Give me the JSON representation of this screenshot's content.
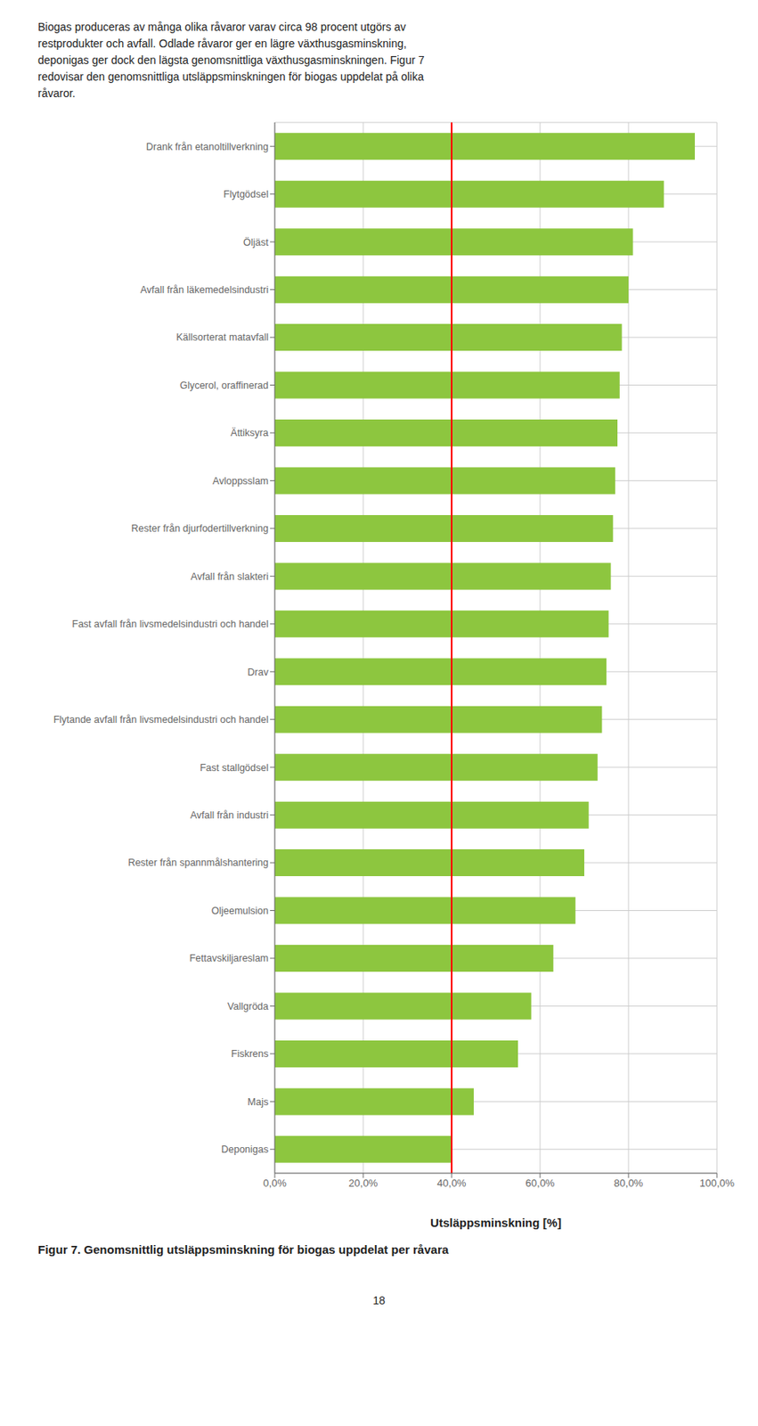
{
  "chart_data": {
    "type": "bar",
    "orientation": "horizontal",
    "title": "Figur 7. Genomsnittlig utsläppsminskning för biogas uppdelat per råvara",
    "xlabel": "Utsläppsminskning [%]",
    "categories": [
      "Deponigas",
      "Majs",
      "Fiskrens",
      "Vallgröda",
      "Fettavskiljareslam",
      "Oljeemulsion",
      "Rester från spannmålshantering",
      "Avfall från industri",
      "Fast stallgödsel",
      "Flytande avfall från livsmedelsindustri och handel",
      "Drav",
      "Fast avfall från livsmedelsindustri och handel",
      "Avfall från slakteri",
      "Rester från djurfodertillverkning",
      "Avloppsslam",
      "Ättiksyra",
      "Glycerol, oraffinerad",
      "Källsorterat matavfall",
      "Avfall från läkemedelsindustri",
      "Öljäst",
      "Flytgödsel",
      "Drank från etanoltillverkning"
    ],
    "values": [
      40.0,
      45.0,
      55.0,
      58.0,
      63.0,
      68.0,
      70.0,
      71.0,
      73.0,
      74.0,
      75.0,
      75.5,
      76.0,
      76.5,
      77.0,
      77.5,
      78.0,
      78.5,
      80.0,
      81.0,
      88.0,
      95.0
    ],
    "color": "#8DC63F",
    "reference_line": {
      "value": 40.0,
      "color": "#FF0000"
    },
    "xlim": [
      0,
      100
    ],
    "xticks": [
      {
        "value": 0,
        "label": "0,0%"
      },
      {
        "value": 20,
        "label": "20,0%"
      },
      {
        "value": 40,
        "label": "40,0%"
      },
      {
        "value": 60,
        "label": "60,0%"
      },
      {
        "value": 80,
        "label": "80,0%"
      },
      {
        "value": 100,
        "label": "100,0%"
      }
    ],
    "grid": true,
    "annotations": [
      "Biogas produceras av många olika råvaror varav circa 98 procent utgörs av",
      "restprodukter och avfall. Odlade råvaror ger en lägre växthusgasminskning,",
      "deponigas ger dock den lägsta genomsnittliga växthusgasminskningen. Figur 7",
      "redovisar den genomsnittliga utsläppsminskningen för biogas uppdelat på olika",
      "råvaror.",
      "18"
    ]
  }
}
